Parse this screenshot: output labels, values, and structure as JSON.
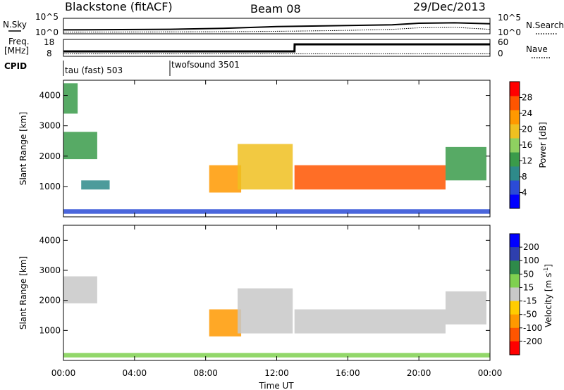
{
  "header": {
    "title": "Blackstone (fitACF)",
    "beam": "Beam 08",
    "date": "29/Dec/2013"
  },
  "top_panels": {
    "nsky_label": "N.Sky",
    "nsearch_label": "N.Search",
    "freq_label_1": "Freq.",
    "freq_label_2": "[MHz]",
    "nave_label": "Nave",
    "cpid_label": "CPID",
    "noise_ticks_left": [
      "10^5",
      "10^0"
    ],
    "noise_ticks_right": [
      "10^5",
      "10^0"
    ],
    "freq_ticks": [
      "18",
      "8"
    ],
    "nave_ticks": [
      "60",
      "0"
    ],
    "cpid_segments": [
      {
        "label": "tau (fast) 503",
        "start_h": 0,
        "end_h": 6
      },
      {
        "label": "twofsound 3501",
        "start_h": 6,
        "end_h": 24
      }
    ]
  },
  "colors": {
    "power_scale": [
      "#0000ff",
      "#2b4bd6",
      "#2e8a8a",
      "#3a9b4a",
      "#8fd060",
      "#f0c020",
      "#ff9900",
      "#ff5500",
      "#ff0000"
    ],
    "velocity_scale": [
      "#0000ff",
      "#2e3fae",
      "#2e8a4a",
      "#7fd050",
      "#c8c8c8",
      "#ffcc00",
      "#ff9900",
      "#ff5500",
      "#ff0000"
    ]
  },
  "chart_data": [
    {
      "type": "line",
      "name": "noise-panel",
      "xlim": [
        0,
        24
      ],
      "series": [
        {
          "name": "N.Sky",
          "x": [
            0,
            6,
            9,
            12,
            15,
            18.5,
            20,
            22,
            24
          ],
          "y_log10": [
            1.0,
            1.2,
            1.6,
            2.3,
            2.6,
            3.0,
            3.6,
            3.8,
            3.4
          ]
        },
        {
          "name": "N.Search",
          "x": [
            0,
            6,
            10,
            13,
            16,
            18.5,
            20,
            22,
            24
          ],
          "y_log10": [
            0.1,
            0.2,
            0.3,
            0.5,
            0.8,
            1.2,
            1.8,
            2.0,
            1.2
          ]
        }
      ]
    },
    {
      "type": "line",
      "name": "freq-nave-panel",
      "xlim": [
        0,
        24
      ],
      "series": [
        {
          "name": "Freq.",
          "x": [
            0,
            13,
            13.01,
            24
          ],
          "y": [
            10.5,
            10.5,
            15.5,
            15.5
          ]
        },
        {
          "name": "Nave",
          "x": [
            0,
            24
          ],
          "y": [
            5,
            5
          ]
        }
      ]
    },
    {
      "type": "heatmap",
      "title": "Power",
      "xlabel": "Time UT",
      "ylabel": "Slant Range [km]",
      "xlim": [
        0,
        24
      ],
      "ylim": [
        0,
        4500
      ],
      "x_ticks": [
        "00:00",
        "04:00",
        "08:00",
        "12:00",
        "16:00",
        "20:00",
        "00:00"
      ],
      "y_ticks": [
        1000,
        2000,
        3000,
        4000
      ],
      "colorbar_label": "Power [dB]",
      "colorbar_ticks": [
        4,
        8,
        12,
        16,
        20,
        24,
        28
      ],
      "colorbar_range": [
        0,
        32
      ],
      "echo_regions": [
        {
          "t0": 0.0,
          "t1": 1.9,
          "r0": 1900,
          "r1": 2800,
          "value": 14
        },
        {
          "t0": 0.0,
          "t1": 0.8,
          "r0": 3400,
          "r1": 4400,
          "value": 12
        },
        {
          "t0": 1.0,
          "t1": 2.6,
          "r0": 900,
          "r1": 1200,
          "value": 8
        },
        {
          "t0": 8.2,
          "t1": 10.0,
          "r0": 800,
          "r1": 1700,
          "value": 24
        },
        {
          "t0": 9.8,
          "t1": 12.9,
          "r0": 900,
          "r1": 2400,
          "value": 18
        },
        {
          "t0": 13.0,
          "t1": 21.5,
          "r0": 900,
          "r1": 1700,
          "value": 26
        },
        {
          "t0": 21.5,
          "t1": 23.8,
          "r0": 1200,
          "r1": 2300,
          "value": 14
        },
        {
          "t0": 0.0,
          "t1": 24.0,
          "r0": 100,
          "r1": 250,
          "value": 6
        }
      ]
    },
    {
      "type": "heatmap",
      "title": "Velocity",
      "xlabel": "Time UT",
      "ylabel": "Slant Range [km]",
      "xlim": [
        0,
        24
      ],
      "ylim": [
        0,
        4500
      ],
      "x_ticks": [
        "00:00",
        "04:00",
        "08:00",
        "12:00",
        "16:00",
        "20:00",
        "00:00"
      ],
      "y_ticks": [
        1000,
        2000,
        3000,
        4000
      ],
      "colorbar_label": "Velocity [m s",
      "colorbar_label_sup": "-1",
      "colorbar_label_end": "]",
      "colorbar_ticks": [
        200,
        100,
        50,
        15,
        -15,
        -50,
        -100,
        -200
      ],
      "echo_regions": [
        {
          "t0": 0.0,
          "t1": 1.9,
          "r0": 1900,
          "r1": 2800,
          "value": -10
        },
        {
          "t0": 8.2,
          "t1": 10.0,
          "r0": 800,
          "r1": 1700,
          "value": -80
        },
        {
          "t0": 9.8,
          "t1": 12.9,
          "r0": 900,
          "r1": 2400,
          "value": 5
        },
        {
          "t0": 13.0,
          "t1": 21.5,
          "r0": 900,
          "r1": 1700,
          "value": 0
        },
        {
          "t0": 21.5,
          "t1": 23.8,
          "r0": 1200,
          "r1": 2300,
          "value": 10
        },
        {
          "t0": 0.0,
          "t1": 24.0,
          "r0": 100,
          "r1": 250,
          "value": 40
        }
      ]
    }
  ]
}
